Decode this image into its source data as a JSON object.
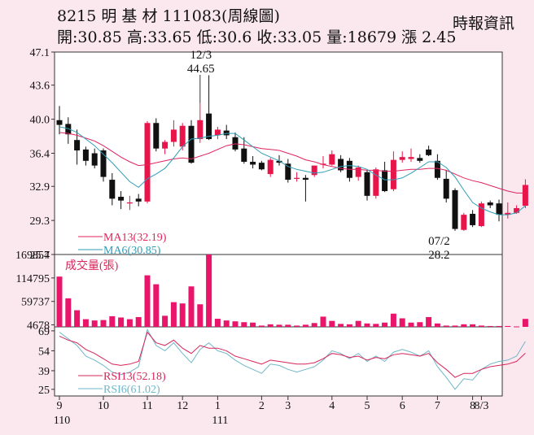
{
  "header": {
    "title_line": "8215  明 基 材 111083(周線圖)",
    "quote_line": "開:30.85 高:33.65 低:30.6 收:33.05 量:18679 漲 2.45",
    "source": "時報資訊"
  },
  "colors": {
    "up": "#e8154a",
    "down": "#111111",
    "ma13": "#e0245e",
    "ma6": "#2d9fb5",
    "volume": "#e8156a",
    "rsi13": "#d8245a",
    "rsi6": "#6fb7c9",
    "panel_bg": "#ffffff"
  },
  "chart_data": {
    "type": "candlestick",
    "price_axis": {
      "ticks": [
        "47.1",
        "43.6",
        "40.0",
        "36.4",
        "32.9",
        "29.3",
        "25.7"
      ],
      "range": [
        25.7,
        47.1
      ]
    },
    "volume_axis": {
      "ticks": [
        "169854",
        "114795",
        "59737",
        "4678"
      ],
      "range": [
        0,
        169854
      ]
    },
    "rsi_axis": {
      "ticks": [
        "69",
        "54",
        "39",
        "25"
      ],
      "range": [
        20,
        72
      ]
    },
    "x_ticks": [
      {
        "label": "9",
        "sub": "110",
        "index": 0
      },
      {
        "label": "10",
        "index": 5
      },
      {
        "label": "11",
        "index": 10
      },
      {
        "label": "12",
        "index": 14
      },
      {
        "label": "1",
        "sub": "111",
        "index": 18
      },
      {
        "label": "2",
        "index": 23
      },
      {
        "label": "3",
        "index": 26
      },
      {
        "label": "4",
        "index": 31
      },
      {
        "label": "5",
        "index": 35
      },
      {
        "label": "6",
        "index": 39
      },
      {
        "label": "7",
        "index": 43
      },
      {
        "label": "8",
        "index": 47
      },
      {
        "label": "8/3",
        "index": 48
      }
    ],
    "annotations": [
      {
        "date": "12/3",
        "value": "44.65",
        "index": 16,
        "kind": "high"
      },
      {
        "date": "07/2",
        "value": "28.2",
        "index": 43,
        "kind": "low"
      }
    ],
    "legend": {
      "ma13": "MA13(32.19)",
      "ma6": "MA6(30.85)",
      "volume": "成交量(張)",
      "rsi13": "RSI13(52.18)",
      "rsi6": "RSI6(61.02)"
    },
    "candles": [
      [
        39.9,
        41.4,
        38.4,
        39.4
      ],
      [
        39.5,
        40.2,
        37.4,
        38.4
      ],
      [
        37.8,
        38.9,
        35.2,
        36.7
      ],
      [
        36.8,
        37.1,
        35.1,
        35.6
      ],
      [
        36.4,
        36.9,
        34.8,
        35.1
      ],
      [
        36.7,
        36.9,
        33.4,
        33.9
      ],
      [
        33.6,
        34.3,
        30.9,
        31.6
      ],
      [
        31.8,
        32.4,
        30.5,
        31.4
      ],
      [
        31.1,
        31.9,
        30.4,
        31.2
      ],
      [
        31.6,
        32.1,
        30.8,
        31.3
      ],
      [
        31.3,
        39.8,
        31.1,
        39.6
      ],
      [
        39.6,
        40.1,
        36.6,
        36.9
      ],
      [
        36.9,
        37.8,
        36.3,
        37.6
      ],
      [
        37.6,
        39.9,
        37.1,
        38.9
      ],
      [
        37.1,
        39.6,
        36.7,
        39.3
      ],
      [
        39.3,
        39.9,
        35.3,
        35.4
      ],
      [
        37.9,
        41.7,
        37.5,
        39.9
      ],
      [
        40.6,
        44.65,
        37.8,
        37.9
      ],
      [
        38.3,
        39.2,
        37.9,
        38.9
      ],
      [
        38.8,
        39.4,
        37.9,
        38.3
      ],
      [
        38.1,
        38.6,
        36.6,
        36.8
      ],
      [
        36.9,
        38.1,
        35.3,
        35.5
      ],
      [
        35.5,
        36.1,
        34.8,
        35.2
      ],
      [
        35.4,
        35.6,
        34.6,
        34.7
      ],
      [
        34.2,
        35.9,
        33.9,
        35.7
      ],
      [
        35.6,
        36.2,
        35.1,
        35.4
      ],
      [
        35.3,
        35.8,
        33.3,
        33.6
      ],
      [
        33.7,
        34.4,
        33.4,
        33.8
      ],
      [
        33.8,
        34.1,
        31.3,
        33.6
      ],
      [
        34.1,
        35.1,
        33.9,
        35.1
      ],
      [
        35.2,
        36.1,
        34.8,
        35.3
      ],
      [
        35.2,
        36.7,
        35.1,
        36.3
      ],
      [
        35.8,
        36.2,
        34.4,
        34.6
      ],
      [
        35.6,
        35.9,
        33.4,
        33.8
      ],
      [
        33.9,
        35.1,
        33.5,
        34.9
      ],
      [
        34.4,
        34.6,
        31.4,
        31.9
      ],
      [
        31.9,
        34.9,
        31.6,
        34.7
      ],
      [
        34.6,
        35.5,
        32.3,
        32.4
      ],
      [
        32.6,
        36.6,
        32.4,
        35.7
      ],
      [
        35.7,
        36.6,
        35.4,
        36.0
      ],
      [
        35.8,
        36.9,
        35.5,
        36.0
      ],
      [
        35.9,
        36.3,
        35.4,
        35.6
      ],
      [
        36.8,
        37.2,
        36.1,
        36.2
      ],
      [
        35.6,
        36.3,
        33.6,
        33.8
      ],
      [
        33.7,
        34.6,
        31.2,
        31.6
      ],
      [
        32.5,
        32.7,
        28.2,
        28.4
      ],
      [
        28.3,
        30.1,
        28.2,
        29.9
      ],
      [
        30.0,
        30.4,
        28.6,
        28.8
      ],
      [
        28.7,
        31.3,
        28.6,
        31.1
      ],
      [
        31.2,
        31.4,
        30.6,
        30.9
      ],
      [
        31.1,
        31.5,
        29.2,
        29.9
      ],
      [
        29.9,
        31.2,
        29.5,
        30.1
      ],
      [
        30.1,
        30.9,
        30.0,
        30.6
      ],
      [
        30.85,
        33.65,
        30.6,
        33.05
      ]
    ],
    "ma13": [
      38.6,
      38.5,
      38.3,
      38.0,
      37.7,
      37.2,
      36.6,
      36.0,
      35.5,
      35.1,
      35.2,
      35.4,
      35.6,
      35.8,
      35.9,
      35.8,
      36.1,
      36.4,
      36.8,
      37.2,
      37.4,
      37.3,
      37.1,
      36.9,
      36.8,
      36.7,
      36.4,
      36.1,
      35.7,
      35.5,
      35.2,
      35.0,
      34.8,
      34.7,
      34.7,
      34.6,
      34.6,
      34.5,
      34.5,
      34.6,
      34.7,
      34.7,
      34.8,
      34.8,
      34.6,
      34.2,
      33.8,
      33.5,
      33.3,
      33.0,
      32.7,
      32.4,
      32.2,
      32.19
    ],
    "ma6": [
      39.2,
      39.0,
      38.6,
      37.9,
      37.2,
      36.3,
      35.4,
      34.4,
      33.4,
      32.8,
      33.7,
      34.2,
      34.8,
      35.9,
      37.1,
      37.9,
      38.0,
      38.2,
      38.3,
      38.5,
      38.5,
      37.8,
      37.1,
      36.4,
      36.0,
      35.6,
      35.0,
      34.7,
      34.5,
      34.3,
      34.4,
      34.7,
      35.0,
      35.1,
      35.0,
      34.7,
      34.1,
      33.6,
      33.6,
      33.8,
      34.3,
      34.9,
      35.5,
      35.5,
      34.9,
      33.9,
      32.5,
      31.2,
      30.6,
      30.2,
      29.9,
      29.9,
      30.1,
      30.85
    ],
    "volume": [
      118000,
      67000,
      39000,
      18000,
      15000,
      16000,
      25000,
      22000,
      18000,
      23000,
      121000,
      100000,
      26000,
      58000,
      55000,
      95000,
      53000,
      169854,
      19000,
      15000,
      13000,
      11000,
      10000,
      3000,
      6000,
      5000,
      5000,
      3000,
      5000,
      9000,
      24000,
      14000,
      7000,
      6000,
      14000,
      8000,
      7000,
      10000,
      31000,
      20000,
      10000,
      11000,
      23000,
      8000,
      3000,
      3000,
      6000,
      6000,
      3000,
      2000,
      2000,
      2000,
      1000,
      18679
    ],
    "rsi13": [
      65,
      62,
      60,
      55,
      52,
      48,
      44,
      43,
      44,
      46,
      68,
      60,
      58,
      62,
      56,
      52,
      58,
      56,
      56,
      54,
      50,
      48,
      46,
      44,
      47,
      46,
      45,
      44,
      44,
      45,
      48,
      52,
      51,
      49,
      50,
      47,
      49,
      48,
      51,
      52,
      51,
      50,
      52,
      45,
      40,
      34,
      37,
      37,
      40,
      42,
      43,
      44,
      46,
      52.18
    ],
    "rsi6": [
      68,
      63,
      58,
      50,
      47,
      43,
      38,
      36,
      38,
      42,
      70,
      58,
      54,
      60,
      52,
      45,
      55,
      60,
      54,
      52,
      47,
      43,
      40,
      37,
      44,
      43,
      40,
      38,
      40,
      42,
      47,
      54,
      52,
      48,
      52,
      46,
      50,
      46,
      53,
      55,
      53,
      50,
      54,
      42,
      34,
      25,
      33,
      32,
      40,
      44,
      46,
      47,
      50,
      61.02
    ]
  }
}
